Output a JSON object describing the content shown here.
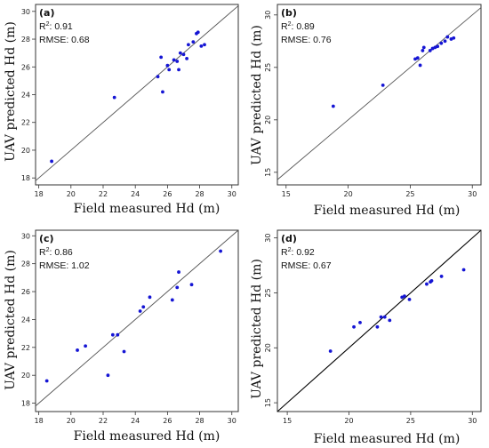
{
  "chart_data": [
    {
      "type": "scatter",
      "panel_label": "(a)",
      "r2_label": "R",
      "r2_value": ": 0.91",
      "rmse_label": "RMSE: 0.68",
      "xlabel": "Field measured Hd (m)",
      "ylabel": "UAV predicted Hd (m)",
      "xlim": [
        17.8,
        30.4
      ],
      "ylim": [
        17.5,
        30.5
      ],
      "xticks": [
        18,
        20,
        22,
        24,
        26,
        28,
        30
      ],
      "yticks": [
        18,
        20,
        22,
        24,
        26,
        28,
        30
      ],
      "ytick_rotated": false,
      "one_to_one_line": true,
      "line_color": "#555555",
      "point_color": "#1515d4",
      "points": [
        [
          18.8,
          19.2
        ],
        [
          22.7,
          23.8
        ],
        [
          25.4,
          25.3
        ],
        [
          25.6,
          26.7
        ],
        [
          25.7,
          24.2
        ],
        [
          26.0,
          26.1
        ],
        [
          26.1,
          25.8
        ],
        [
          26.4,
          26.5
        ],
        [
          26.6,
          26.4
        ],
        [
          26.7,
          25.8
        ],
        [
          26.8,
          27.0
        ],
        [
          27.0,
          26.9
        ],
        [
          27.2,
          26.6
        ],
        [
          27.3,
          27.6
        ],
        [
          27.6,
          27.8
        ],
        [
          27.8,
          28.4
        ],
        [
          27.9,
          28.5
        ],
        [
          28.1,
          27.5
        ],
        [
          28.3,
          27.6
        ]
      ]
    },
    {
      "type": "scatter",
      "panel_label": "(b)",
      "r2_label": "R",
      "r2_value": ": 0.89",
      "rmse_label": "RMSE: 0.76",
      "xlabel": "Field measured Hd (m)",
      "ylabel": "UAV predicted Hd (m)",
      "xlim": [
        14.3,
        30.7
      ],
      "ylim": [
        13.8,
        31.0
      ],
      "xticks": [
        15,
        20,
        25,
        30
      ],
      "yticks": [
        15,
        20,
        25,
        30
      ],
      "ytick_rotated": true,
      "one_to_one_line": true,
      "line_color": "#555555",
      "point_color": "#1515d4",
      "points": [
        [
          18.8,
          21.3
        ],
        [
          22.8,
          23.3
        ],
        [
          25.4,
          25.8
        ],
        [
          25.6,
          25.9
        ],
        [
          25.8,
          25.2
        ],
        [
          26.0,
          26.6
        ],
        [
          26.1,
          26.9
        ],
        [
          26.6,
          26.6
        ],
        [
          26.8,
          26.8
        ],
        [
          27.0,
          26.9
        ],
        [
          27.2,
          27.0
        ],
        [
          27.5,
          27.3
        ],
        [
          27.8,
          27.5
        ],
        [
          28.0,
          27.9
        ],
        [
          28.3,
          27.7
        ],
        [
          28.5,
          27.8
        ]
      ]
    },
    {
      "type": "scatter",
      "panel_label": "(c)",
      "r2_label": "R",
      "r2_value": ": 0.86",
      "rmse_label": "RMSE: 1.02",
      "xlabel": "Field measured Hd (m)",
      "ylabel": "UAV predicted Hd (m)",
      "xlim": [
        17.8,
        30.4
      ],
      "ylim": [
        17.4,
        30.4
      ],
      "xticks": [
        18,
        20,
        22,
        24,
        26,
        28,
        30
      ],
      "yticks": [
        18,
        20,
        22,
        24,
        26,
        28,
        30
      ],
      "ytick_rotated": false,
      "one_to_one_line": true,
      "line_color": "#555555",
      "point_color": "#1515d4",
      "points": [
        [
          18.5,
          19.6
        ],
        [
          20.4,
          21.8
        ],
        [
          20.9,
          22.1
        ],
        [
          22.3,
          20.0
        ],
        [
          22.6,
          22.9
        ],
        [
          22.9,
          22.9
        ],
        [
          23.3,
          21.7
        ],
        [
          24.3,
          24.6
        ],
        [
          24.5,
          24.9
        ],
        [
          24.9,
          25.6
        ],
        [
          26.3,
          25.4
        ],
        [
          26.6,
          26.3
        ],
        [
          26.7,
          27.4
        ],
        [
          27.5,
          26.5
        ],
        [
          29.3,
          28.9
        ]
      ]
    },
    {
      "type": "scatter",
      "panel_label": "(d)",
      "r2_label": "R",
      "r2_value": ": 0.92",
      "rmse_label": "RMSE: 0.67",
      "xlabel": "Field measured Hd (m)",
      "ylabel": "UAV predicted Hd (m)",
      "xlim": [
        14.2,
        30.7
      ],
      "ylim": [
        14.2,
        30.7
      ],
      "xticks": [
        15,
        20,
        25,
        30
      ],
      "yticks": [
        15,
        20,
        25,
        30
      ],
      "ytick_rotated": true,
      "one_to_one_line": true,
      "line_color": "#000000",
      "point_color": "#1515d4",
      "points": [
        [
          18.5,
          19.7
        ],
        [
          20.4,
          21.9
        ],
        [
          20.9,
          22.3
        ],
        [
          22.3,
          21.9
        ],
        [
          22.6,
          22.8
        ],
        [
          22.9,
          22.8
        ],
        [
          23.3,
          22.5
        ],
        [
          24.3,
          24.6
        ],
        [
          24.5,
          24.7
        ],
        [
          24.9,
          24.4
        ],
        [
          26.3,
          25.8
        ],
        [
          26.6,
          26.0
        ],
        [
          26.7,
          26.1
        ],
        [
          27.5,
          26.5
        ],
        [
          29.3,
          27.1
        ]
      ]
    }
  ]
}
